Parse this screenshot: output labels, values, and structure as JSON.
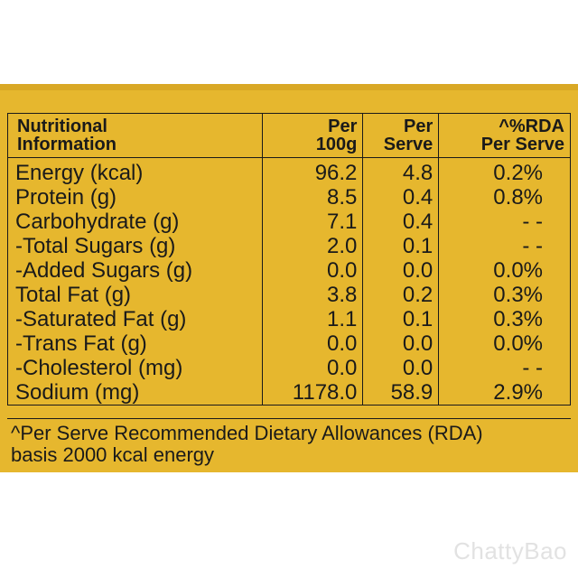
{
  "header": {
    "col1": [
      "Nutritional",
      "Information"
    ],
    "col2": [
      "Per",
      "100g"
    ],
    "col3": [
      "Per",
      "Serve"
    ],
    "col4": [
      "^%RDA",
      "Per Serve"
    ]
  },
  "rows": [
    {
      "label": "Energy (kcal)",
      "per100g": "96.2",
      "perServe": "4.8",
      "rda": "0.2%"
    },
    {
      "label": "Protein (g)",
      "per100g": "8.5",
      "perServe": "0.4",
      "rda": "0.8%"
    },
    {
      "label": "Carbohydrate (g)",
      "per100g": "7.1",
      "perServe": "0.4",
      "rda": "- -"
    },
    {
      "label": "-Total Sugars (g)",
      "per100g": "2.0",
      "perServe": "0.1",
      "rda": "- -"
    },
    {
      "label": "-Added Sugars (g)",
      "per100g": "0.0",
      "perServe": "0.0",
      "rda": "0.0%"
    },
    {
      "label": "Total Fat (g)",
      "per100g": "3.8",
      "perServe": "0.2",
      "rda": "0.3%"
    },
    {
      "label": "-Saturated Fat (g)",
      "per100g": "1.1",
      "perServe": "0.1",
      "rda": "0.3%"
    },
    {
      "label": "-Trans Fat (g)",
      "per100g": "0.0",
      "perServe": "0.0",
      "rda": "0.0%"
    },
    {
      "label": "-Cholesterol (mg)",
      "per100g": "0.0",
      "perServe": "0.0",
      "rda": "- -"
    },
    {
      "label": "Sodium (mg)",
      "per100g": "1178.0",
      "perServe": "58.9",
      "rda": "2.9%"
    }
  ],
  "footnote": [
    "^Per Serve Recommended Dietary Allowances (RDA)",
    "basis 2000 kcal energy"
  ],
  "watermark": "ChattyBao",
  "colors": {
    "panel": "#e6b72e",
    "text": "#1a1a1a"
  }
}
